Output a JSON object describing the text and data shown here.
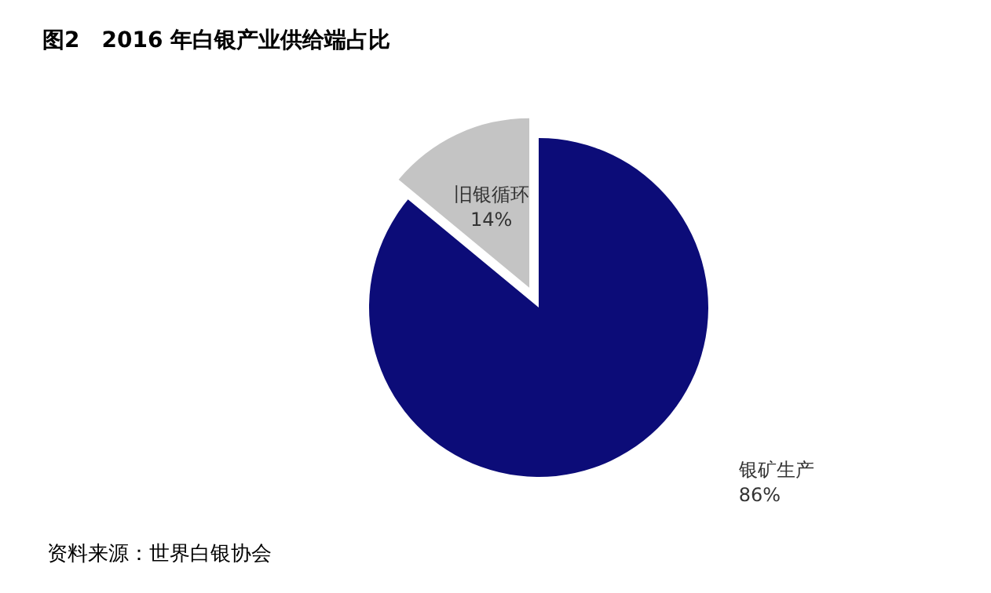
{
  "chart_data": {
    "type": "pie",
    "title": "图2　2016 年白银产业供给端占比",
    "categories": [
      "银矿生产",
      "旧银循环"
    ],
    "values": [
      86,
      14
    ],
    "colors": [
      "#0c0c78",
      "#c4c4c4"
    ],
    "value_labels": [
      "86%",
      "14%"
    ],
    "legend": false,
    "annotations": [
      "资料来源：世界白银协会"
    ]
  }
}
